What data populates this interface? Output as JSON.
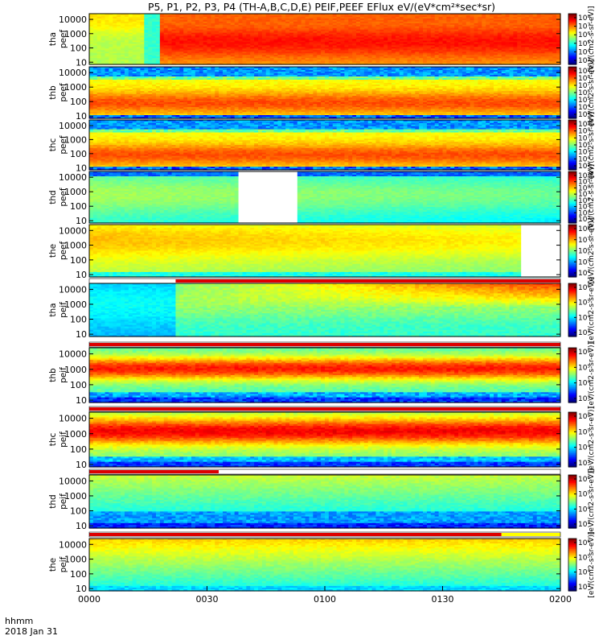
{
  "title": "P5, P1, P2, P3, P4 (TH-A,B,C,D,E) PEIF,PEEF EFlux eV/(eV*cm²*sec*sr)",
  "footer": {
    "line1": "hhmm",
    "line2": "2018 Jan 31"
  },
  "xaxis": {
    "ticks": [
      "0000",
      "0030",
      "0100",
      "0130",
      "0200"
    ],
    "minutes": [
      0,
      30,
      60,
      90,
      120
    ],
    "range_minutes": [
      0,
      120
    ]
  },
  "colors": {
    "background": "#ffffff",
    "frame": "#000000",
    "status_bar_red": "#dd0000",
    "status_bar_yellow": "#ffff00"
  },
  "colorbar_unit": "[eV/(cm2-s-sr-eV)]",
  "chart_data": [
    {
      "type": "heatmap",
      "species": "electron",
      "panel": "tha peef",
      "label": [
        "tha",
        "peef"
      ],
      "ylabel_ticks": [
        "10000",
        "1000",
        "100",
        "10"
      ],
      "y_log": true,
      "energy_range_eV": [
        7,
        25000
      ],
      "colorbar_ticks": [
        "10⁸",
        "10⁷",
        "10⁶",
        "10⁵",
        "10⁴",
        "10³"
      ],
      "profile": "a_e",
      "gaps": [],
      "status_bar": null
    },
    {
      "type": "heatmap",
      "species": "electron",
      "panel": "thb peef",
      "label": [
        "thb",
        "peef"
      ],
      "ylabel_ticks": [
        "10000",
        "1000",
        "100",
        "10"
      ],
      "y_log": true,
      "energy_range_eV": [
        7,
        25000
      ],
      "colorbar_ticks": [
        "10⁹",
        "10⁸",
        "10⁷",
        "10⁶",
        "10⁵",
        "10⁴",
        "10³"
      ],
      "profile": "bc_e",
      "gaps": [],
      "status_bar": null
    },
    {
      "type": "heatmap",
      "species": "electron",
      "panel": "thc peef",
      "label": [
        "thc",
        "peef"
      ],
      "ylabel_ticks": [
        "10000",
        "1000",
        "100",
        "10"
      ],
      "y_log": true,
      "energy_range_eV": [
        7,
        25000
      ],
      "colorbar_ticks": [
        "10⁹",
        "10⁸",
        "10⁷",
        "10⁶",
        "10⁵",
        "10⁴",
        "10³"
      ],
      "profile": "bc_e",
      "gaps": [],
      "status_bar": null
    },
    {
      "type": "heatmap",
      "species": "electron",
      "panel": "thd peef",
      "label": [
        "thd",
        "peef"
      ],
      "ylabel_ticks": [
        "10000",
        "1000",
        "100",
        "10"
      ],
      "y_log": true,
      "energy_range_eV": [
        7,
        25000
      ],
      "colorbar_ticks": [
        "10¹⁰",
        "10⁹",
        "10⁸",
        "10⁷",
        "10⁶",
        "10⁵",
        "10⁴",
        "10³"
      ],
      "profile": "d_e",
      "gaps": [
        [
          38,
          53
        ]
      ],
      "status_bar": null
    },
    {
      "type": "heatmap",
      "species": "electron",
      "panel": "the peef",
      "label": [
        "the",
        "peef"
      ],
      "ylabel_ticks": [
        "10000",
        "1000",
        "100",
        "10"
      ],
      "y_log": true,
      "energy_range_eV": [
        7,
        25000
      ],
      "colorbar_ticks": [
        "10⁸",
        "10⁷",
        "10⁶",
        "10⁵",
        "10⁴"
      ],
      "profile": "e_e",
      "gaps": [
        [
          110,
          120
        ]
      ],
      "status_bar": null
    },
    {
      "type": "heatmap",
      "species": "ion",
      "panel": "tha peif",
      "label": [
        "tha",
        "peif"
      ],
      "ylabel_ticks": [
        "10000",
        "1000",
        "100",
        "10"
      ],
      "y_log": true,
      "energy_range_eV": [
        7,
        25000
      ],
      "colorbar_ticks": [
        "10⁶",
        "10⁵",
        "10⁴",
        "10³"
      ],
      "profile": "a_i",
      "gaps": [],
      "status_bar": [
        [
          0,
          22,
          "white"
        ],
        [
          22,
          120,
          "red"
        ]
      ]
    },
    {
      "type": "heatmap",
      "species": "ion",
      "panel": "thb peif",
      "label": [
        "thb",
        "peif"
      ],
      "ylabel_ticks": [
        "10000",
        "1000",
        "100",
        "10"
      ],
      "y_log": true,
      "energy_range_eV": [
        7,
        25000
      ],
      "colorbar_ticks": [
        "10⁶",
        "10⁵",
        "10⁴",
        "10³"
      ],
      "profile": "b_i",
      "gaps": [],
      "status_bar": [
        [
          0,
          120,
          "red"
        ]
      ]
    },
    {
      "type": "heatmap",
      "species": "ion",
      "panel": "thc peif",
      "label": [
        "thc",
        "peif"
      ],
      "ylabel_ticks": [
        "10000",
        "1000",
        "100",
        "10"
      ],
      "y_log": true,
      "energy_range_eV": [
        7,
        25000
      ],
      "colorbar_ticks": [
        "10⁶",
        "10⁵",
        "10⁴",
        "10³"
      ],
      "profile": "c_i",
      "gaps": [],
      "status_bar": [
        [
          0,
          120,
          "red"
        ]
      ]
    },
    {
      "type": "heatmap",
      "species": "ion",
      "panel": "thd peif",
      "label": [
        "thd",
        "peif"
      ],
      "ylabel_ticks": [
        "10000",
        "1000",
        "100",
        "10"
      ],
      "y_log": true,
      "energy_range_eV": [
        7,
        25000
      ],
      "colorbar_ticks": [
        "10⁶",
        "10⁵",
        "10⁴",
        "10³"
      ],
      "profile": "d_i",
      "gaps": [],
      "status_bar": [
        [
          0,
          33,
          "red"
        ],
        [
          33,
          120,
          "white"
        ]
      ]
    },
    {
      "type": "heatmap",
      "species": "ion",
      "panel": "the peif",
      "label": [
        "the",
        "peif"
      ],
      "ylabel_ticks": [
        "10000",
        "1000",
        "100",
        "10"
      ],
      "y_log": true,
      "energy_range_eV": [
        7,
        25000
      ],
      "colorbar_ticks": [
        "10⁶",
        "10⁵",
        "10⁴",
        "10³"
      ],
      "profile": "e_i",
      "gaps": [],
      "status_bar": [
        [
          0,
          105,
          "red"
        ],
        [
          105,
          120,
          "yellow"
        ]
      ]
    }
  ]
}
